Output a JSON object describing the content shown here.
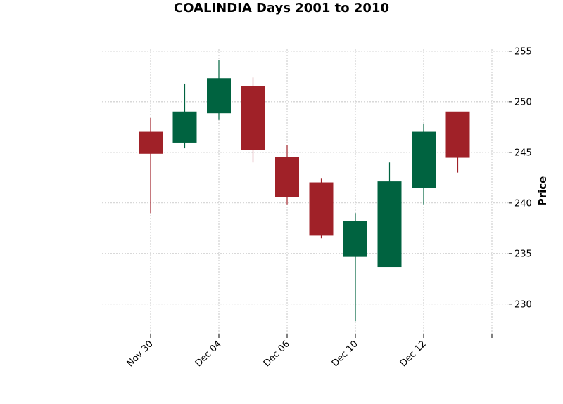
{
  "chart_data": {
    "type": "candlestick",
    "title": "COALINDIA Days 2001 to 2010",
    "ylabel": "Price",
    "xlabel": "",
    "ylim": [
      227,
      255.2
    ],
    "yticks": [
      230,
      235,
      240,
      245,
      250,
      255
    ],
    "x_tick_labels": [
      {
        "index": 0,
        "label": "Nov 30"
      },
      {
        "index": 2,
        "label": "Dec 04"
      },
      {
        "index": 4,
        "label": "Dec 06"
      },
      {
        "index": 6,
        "label": "Dec 10"
      },
      {
        "index": 8,
        "label": "Dec 12"
      },
      {
        "index": 10,
        "label": ""
      }
    ],
    "grid": true,
    "colors": {
      "up": "#006340",
      "down": "#a02128"
    },
    "candles": [
      {
        "open": 247.0,
        "high": 248.4,
        "low": 239.0,
        "close": 244.9
      },
      {
        "open": 246.0,
        "high": 251.8,
        "low": 245.4,
        "close": 249.0
      },
      {
        "open": 248.9,
        "high": 254.1,
        "low": 248.2,
        "close": 252.3
      },
      {
        "open": 251.5,
        "high": 252.4,
        "low": 244.0,
        "close": 245.3
      },
      {
        "open": 244.5,
        "high": 245.7,
        "low": 239.8,
        "close": 240.6
      },
      {
        "open": 242.0,
        "high": 242.4,
        "low": 236.5,
        "close": 236.8
      },
      {
        "open": 234.7,
        "high": 239.0,
        "low": 228.3,
        "close": 238.2
      },
      {
        "open": 233.7,
        "high": 244.0,
        "low": 233.7,
        "close": 242.1
      },
      {
        "open": 241.5,
        "high": 247.8,
        "low": 239.8,
        "close": 247.0
      },
      {
        "open": 249.0,
        "high": 249.0,
        "low": 243.0,
        "close": 244.5
      }
    ]
  }
}
